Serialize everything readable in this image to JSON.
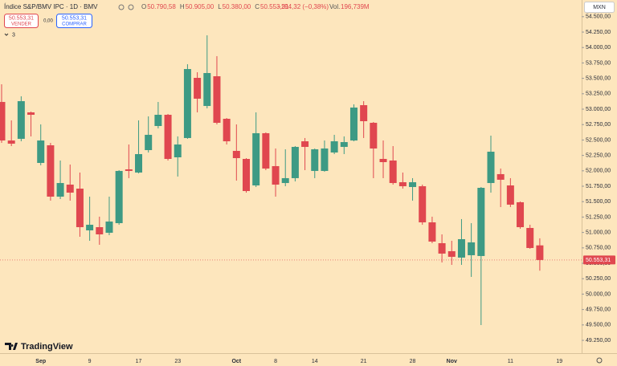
{
  "header": {
    "symbol": "Índice S&P/BMV IPC · 1D · BMV",
    "ohlc": [
      {
        "letter": "O",
        "text": "50.790,58"
      },
      {
        "letter": "H",
        "text": "50.905,00"
      },
      {
        "letter": "L",
        "text": "50.380,00"
      },
      {
        "letter": "C",
        "text": "50.553,31"
      }
    ],
    "change": "−194,32 (−0,38%)",
    "volume_label": "Vol.",
    "volume": "196,739M",
    "sell_price": "50.553,31",
    "sell": "VENDER",
    "spread": "0,00",
    "buy_price": "50.553,31",
    "buy": "COMPRAR",
    "indicators": "3",
    "currency": "MXN",
    "logo": "TradingView"
  },
  "chart_data": {
    "type": "candlestick",
    "categories": [
      null,
      null,
      null,
      null,
      "Sep",
      null,
      null,
      null,
      null,
      "9",
      null,
      null,
      null,
      null,
      "17",
      null,
      null,
      null,
      "23",
      null,
      null,
      null,
      null,
      null,
      "Oct",
      null,
      null,
      null,
      "8",
      null,
      null,
      null,
      "14",
      null,
      null,
      null,
      null,
      "21",
      null,
      null,
      null,
      null,
      "28",
      null,
      null,
      null,
      "Nov",
      null,
      null,
      null,
      null,
      null,
      "11",
      null,
      null,
      null,
      null,
      "19"
    ],
    "open": [
      53117,
      52492,
      52519,
      52948,
      52128,
      52414,
      51581,
      51776,
      51711,
      51034,
      51086,
      50995,
      51151,
      52024,
      51972,
      52336,
      52727,
      52909,
      52219,
      52532,
      53508,
      53052,
      53534,
      52844,
      52323,
      52193,
      51763,
      52610,
      52076,
      51802,
      51881,
      52479,
      51998,
      51998,
      52297,
      52388,
      52492,
      53065,
      52779,
      52193,
      52167,
      51815,
      51737,
      51750,
      51164,
      50826,
      50696,
      50592,
      50631,
      50618,
      51802,
      51946,
      51763,
      51490,
      51073,
      50790.58,
      null,
      null
    ],
    "high": [
      53404,
      52818,
      53209,
      52961,
      52753,
      52453,
      52167,
      52102,
      51972,
      51581,
      51256,
      51581,
      52011,
      52427,
      52818,
      52883,
      53117,
      52922,
      52558,
      53729,
      53599,
      54198,
      53860,
      52857,
      52753,
      52206,
      52948,
      52623,
      52362,
      52349,
      52401,
      52532,
      52362,
      52492,
      52584,
      52558,
      53078,
      53130,
      52792,
      52492,
      52401,
      51972,
      51881,
      51776,
      51256,
      50969,
      50865,
      51217,
      51151,
      51737,
      52571,
      52037,
      51881,
      51503,
      51125,
      50905,
      null,
      null
    ],
    "low": [
      52453,
      52401,
      52479,
      52558,
      52089,
      51516,
      51542,
      51516,
      50930,
      50865,
      50800,
      50956,
      51125,
      51881,
      51959,
      52297,
      52688,
      52167,
      51907,
      52519,
      52948,
      53013,
      52753,
      52427,
      51841,
      51646,
      51737,
      52011,
      51581,
      51750,
      51828,
      52011,
      51881,
      51985,
      52271,
      52271,
      52479,
      52532,
      51881,
      51881,
      51776,
      51711,
      51516,
      51125,
      50826,
      50513,
      50474,
      50474,
      50279,
      49498,
      51646,
      51412,
      51412,
      51060,
      50735,
      50380,
      null,
      null
    ],
    "close": [
      52492,
      52440,
      53130,
      52909,
      52492,
      51581,
      51802,
      51646,
      51086,
      51125,
      50969,
      51177,
      51998,
      51998,
      52271,
      52584,
      52909,
      52193,
      52427,
      53651,
      53170,
      53586,
      52779,
      52479,
      52206,
      51672,
      52610,
      52037,
      51776,
      51881,
      52388,
      52388,
      52349,
      52362,
      52479,
      52466,
      53026,
      52805,
      52362,
      52141,
      51802,
      51750,
      51815,
      51164,
      50852,
      50657,
      50605,
      50891,
      50839,
      51724,
      52310,
      51855,
      51451,
      51086,
      50748,
      50553.31,
      null,
      null
    ],
    "up_color": "#3d9a84",
    "down_color": "#e0474f",
    "ylim": [
      49042,
      54771
    ],
    "yticks": [
      {
        "value": 54500,
        "label": "54.500,00"
      },
      {
        "value": 54250,
        "label": "54.250,00"
      },
      {
        "value": 54000,
        "label": "54.000,00"
      },
      {
        "value": 53750,
        "label": "53.750,00"
      },
      {
        "value": 53500,
        "label": "53.500,00"
      },
      {
        "value": 53250,
        "label": "53.250,00"
      },
      {
        "value": 53000,
        "label": "53.000,00"
      },
      {
        "value": 52750,
        "label": "52.750,00"
      },
      {
        "value": 52500,
        "label": "52.500,00"
      },
      {
        "value": 52250,
        "label": "52.250,00"
      },
      {
        "value": 52000,
        "label": "52.000,00"
      },
      {
        "value": 51750,
        "label": "51.750,00"
      },
      {
        "value": 51500,
        "label": "51.500,00"
      },
      {
        "value": 51250,
        "label": "51.250,00"
      },
      {
        "value": 51000,
        "label": "51.000,00"
      },
      {
        "value": 50750,
        "label": "50.750,00"
      },
      {
        "value": 50500,
        "label": "50.500,00"
      },
      {
        "value": 50250,
        "label": "50.250,00"
      },
      {
        "value": 50000,
        "label": "50.000,00"
      },
      {
        "value": 49750,
        "label": "49.750,00"
      },
      {
        "value": 49500,
        "label": "49.500,00"
      },
      {
        "value": 49250,
        "label": "49.250,00"
      }
    ],
    "last_price": {
      "value": 50553.31,
      "label": "50.553,31"
    }
  }
}
